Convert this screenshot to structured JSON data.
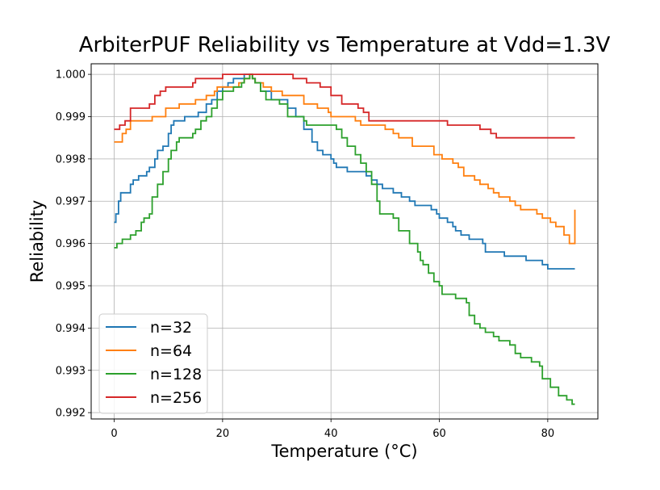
{
  "chart_data": {
    "type": "line",
    "title": "ArbiterPUF Reliability vs Temperature at Vdd=1.3V",
    "xlabel": "Temperature (°C)",
    "ylabel": "Reliability",
    "xlim": [
      -4.25,
      89.25
    ],
    "ylim": [
      0.99185,
      1.00025
    ],
    "xticks": [
      0,
      20,
      40,
      60,
      80
    ],
    "yticks": [
      0.992,
      0.993,
      0.994,
      0.995,
      0.996,
      0.997,
      0.998,
      0.999,
      1.0
    ],
    "xtick_labels": [
      "0",
      "20",
      "40",
      "60",
      "80"
    ],
    "ytick_labels": [
      "0.992",
      "0.993",
      "0.994",
      "0.995",
      "0.996",
      "0.997",
      "0.998",
      "0.999",
      "1.000"
    ],
    "grid": true,
    "legend": {
      "position": "lower-left"
    },
    "series": [
      {
        "name": "n=32",
        "color": "#1f77b4",
        "points": [
          [
            0,
            0.9965
          ],
          [
            0.3,
            0.9967
          ],
          [
            0.8,
            0.997
          ],
          [
            1.2,
            0.9972
          ],
          [
            2.5,
            0.9972
          ],
          [
            3.0,
            0.9974
          ],
          [
            3.5,
            0.9975
          ],
          [
            4.5,
            0.9976
          ],
          [
            6.0,
            0.9977
          ],
          [
            6.5,
            0.9978
          ],
          [
            7.5,
            0.998
          ],
          [
            8.0,
            0.9982
          ],
          [
            9.0,
            0.9983
          ],
          [
            10.0,
            0.9986
          ],
          [
            10.5,
            0.9988
          ],
          [
            11.0,
            0.9989
          ],
          [
            13.0,
            0.999
          ],
          [
            15.5,
            0.9991
          ],
          [
            17.0,
            0.9993
          ],
          [
            18.0,
            0.9994
          ],
          [
            19.0,
            0.9996
          ],
          [
            20.0,
            0.9997
          ],
          [
            21.0,
            0.9998
          ],
          [
            22.0,
            0.9999
          ],
          [
            23.0,
            0.9999
          ],
          [
            24.0,
            1.0
          ],
          [
            25.0,
            1.0
          ],
          [
            25.5,
            0.9999
          ],
          [
            26.0,
            0.9998
          ],
          [
            27.0,
            0.9996
          ],
          [
            29.0,
            0.9994
          ],
          [
            32.0,
            0.9992
          ],
          [
            33.5,
            0.999
          ],
          [
            35.0,
            0.9987
          ],
          [
            36.5,
            0.9984
          ],
          [
            37.5,
            0.9982
          ],
          [
            38.5,
            0.9981
          ],
          [
            40.0,
            0.998
          ],
          [
            40.5,
            0.9979
          ],
          [
            41.0,
            0.9978
          ],
          [
            43.0,
            0.9977
          ],
          [
            46.5,
            0.9976
          ],
          [
            47.5,
            0.9975
          ],
          [
            48.5,
            0.9974
          ],
          [
            49.5,
            0.9973
          ],
          [
            51.5,
            0.9972
          ],
          [
            53.0,
            0.9971
          ],
          [
            54.5,
            0.997
          ],
          [
            55.5,
            0.9969
          ],
          [
            58.5,
            0.9968
          ],
          [
            59.5,
            0.9967
          ],
          [
            60.0,
            0.9966
          ],
          [
            61.5,
            0.9965
          ],
          [
            62.5,
            0.9964
          ],
          [
            63.0,
            0.9963
          ],
          [
            64.0,
            0.9962
          ],
          [
            65.5,
            0.9961
          ],
          [
            68.0,
            0.996
          ],
          [
            68.5,
            0.9958
          ],
          [
            72.0,
            0.9957
          ],
          [
            76.0,
            0.9956
          ],
          [
            79.0,
            0.9955
          ],
          [
            80.0,
            0.9954
          ],
          [
            85,
            0.9954
          ]
        ]
      },
      {
        "name": "n=64",
        "color": "#ff7f0e",
        "points": [
          [
            0,
            0.9984
          ],
          [
            1.5,
            0.9986
          ],
          [
            2.2,
            0.9987
          ],
          [
            3.0,
            0.9989
          ],
          [
            7.0,
            0.999
          ],
          [
            9.5,
            0.9992
          ],
          [
            12.0,
            0.9993
          ],
          [
            15.0,
            0.9994
          ],
          [
            17.0,
            0.9995
          ],
          [
            18.5,
            0.9996
          ],
          [
            19.0,
            0.9997
          ],
          [
            23.0,
            0.9998
          ],
          [
            24.0,
            0.9999
          ],
          [
            25.0,
            1.0
          ],
          [
            25.5,
            0.9999
          ],
          [
            26.0,
            0.9998
          ],
          [
            27.5,
            0.9997
          ],
          [
            29.0,
            0.9996
          ],
          [
            31.0,
            0.9995
          ],
          [
            35.0,
            0.9993
          ],
          [
            37.5,
            0.9992
          ],
          [
            39.5,
            0.9991
          ],
          [
            40.0,
            0.999
          ],
          [
            44.5,
            0.9989
          ],
          [
            45.5,
            0.9988
          ],
          [
            50.0,
            0.9987
          ],
          [
            51.5,
            0.9986
          ],
          [
            52.5,
            0.9985
          ],
          [
            55.0,
            0.9983
          ],
          [
            59.0,
            0.9981
          ],
          [
            60.5,
            0.998
          ],
          [
            62.5,
            0.9979
          ],
          [
            63.5,
            0.9978
          ],
          [
            64.5,
            0.9976
          ],
          [
            66.5,
            0.9975
          ],
          [
            67.5,
            0.9974
          ],
          [
            69.0,
            0.9973
          ],
          [
            70.0,
            0.9972
          ],
          [
            71.0,
            0.9971
          ],
          [
            73.0,
            0.997
          ],
          [
            74.0,
            0.9969
          ],
          [
            75.0,
            0.9968
          ],
          [
            78.0,
            0.9967
          ],
          [
            79.0,
            0.9966
          ],
          [
            80.5,
            0.9965
          ],
          [
            81.5,
            0.9964
          ],
          [
            83.0,
            0.9962
          ],
          [
            84.0,
            0.996
          ],
          [
            85,
            0.9968
          ]
        ]
      },
      {
        "name": "n=128",
        "color": "#2ca02c",
        "points": [
          [
            0,
            0.9959
          ],
          [
            0.5,
            0.996
          ],
          [
            1.5,
            0.9961
          ],
          [
            3.0,
            0.9962
          ],
          [
            4.0,
            0.9963
          ],
          [
            5.0,
            0.9965
          ],
          [
            5.5,
            0.9966
          ],
          [
            6.5,
            0.9967
          ],
          [
            7.0,
            0.9971
          ],
          [
            8.0,
            0.9974
          ],
          [
            9.0,
            0.9977
          ],
          [
            10.0,
            0.998
          ],
          [
            10.5,
            0.9982
          ],
          [
            11.5,
            0.9984
          ],
          [
            12.0,
            0.9985
          ],
          [
            14.5,
            0.9986
          ],
          [
            15.0,
            0.9987
          ],
          [
            16.0,
            0.9989
          ],
          [
            17.0,
            0.999
          ],
          [
            18.0,
            0.9992
          ],
          [
            19.0,
            0.9994
          ],
          [
            20.0,
            0.9996
          ],
          [
            22.0,
            0.9997
          ],
          [
            23.5,
            0.9998
          ],
          [
            24.0,
            0.9999
          ],
          [
            25.0,
            1.0
          ],
          [
            25.5,
            0.9999
          ],
          [
            26.0,
            0.9998
          ],
          [
            27.0,
            0.9996
          ],
          [
            28.0,
            0.9994
          ],
          [
            30.5,
            0.9993
          ],
          [
            32.0,
            0.999
          ],
          [
            35.0,
            0.9989
          ],
          [
            35.5,
            0.9988
          ],
          [
            40.0,
            0.9988
          ],
          [
            41.0,
            0.9987
          ],
          [
            42.0,
            0.9985
          ],
          [
            43.0,
            0.9983
          ],
          [
            44.5,
            0.9981
          ],
          [
            45.5,
            0.9979
          ],
          [
            46.5,
            0.9977
          ],
          [
            47.5,
            0.9974
          ],
          [
            48.5,
            0.997
          ],
          [
            49.0,
            0.9967
          ],
          [
            51.5,
            0.9966
          ],
          [
            52.5,
            0.9963
          ],
          [
            54.5,
            0.996
          ],
          [
            56.0,
            0.9958
          ],
          [
            56.5,
            0.9956
          ],
          [
            57.0,
            0.9955
          ],
          [
            58.0,
            0.9953
          ],
          [
            59.0,
            0.9951
          ],
          [
            60.0,
            0.995
          ],
          [
            60.5,
            0.9948
          ],
          [
            63.0,
            0.9947
          ],
          [
            65.0,
            0.9946
          ],
          [
            65.5,
            0.9943
          ],
          [
            66.5,
            0.9941
          ],
          [
            67.5,
            0.994
          ],
          [
            68.5,
            0.9939
          ],
          [
            70.0,
            0.9938
          ],
          [
            71.0,
            0.9937
          ],
          [
            73.0,
            0.9936
          ],
          [
            74.0,
            0.9934
          ],
          [
            75.0,
            0.9933
          ],
          [
            77.0,
            0.9932
          ],
          [
            78.5,
            0.9931
          ],
          [
            79.0,
            0.9928
          ],
          [
            80.5,
            0.9926
          ],
          [
            82.0,
            0.9924
          ],
          [
            83.5,
            0.9923
          ],
          [
            84.5,
            0.9922
          ],
          [
            85,
            0.9922
          ]
        ]
      },
      {
        "name": "n=256",
        "color": "#d62728",
        "points": [
          [
            0,
            0.9987
          ],
          [
            1.0,
            0.9988
          ],
          [
            2.0,
            0.9989
          ],
          [
            3.0,
            0.9992
          ],
          [
            6.5,
            0.9993
          ],
          [
            7.5,
            0.9995
          ],
          [
            8.5,
            0.9996
          ],
          [
            9.5,
            0.9997
          ],
          [
            14.5,
            0.9998
          ],
          [
            15.0,
            0.9999
          ],
          [
            20.0,
            1.0
          ],
          [
            30.0,
            1.0
          ],
          [
            33.0,
            0.9999
          ],
          [
            35.5,
            0.9998
          ],
          [
            38.0,
            0.9997
          ],
          [
            40.0,
            0.9995
          ],
          [
            42.0,
            0.9993
          ],
          [
            45.0,
            0.9992
          ],
          [
            46.0,
            0.9991
          ],
          [
            47.0,
            0.9989
          ],
          [
            61.5,
            0.9988
          ],
          [
            67.5,
            0.9987
          ],
          [
            69.5,
            0.9986
          ],
          [
            70.5,
            0.9985
          ],
          [
            85,
            0.9985
          ]
        ]
      }
    ]
  }
}
